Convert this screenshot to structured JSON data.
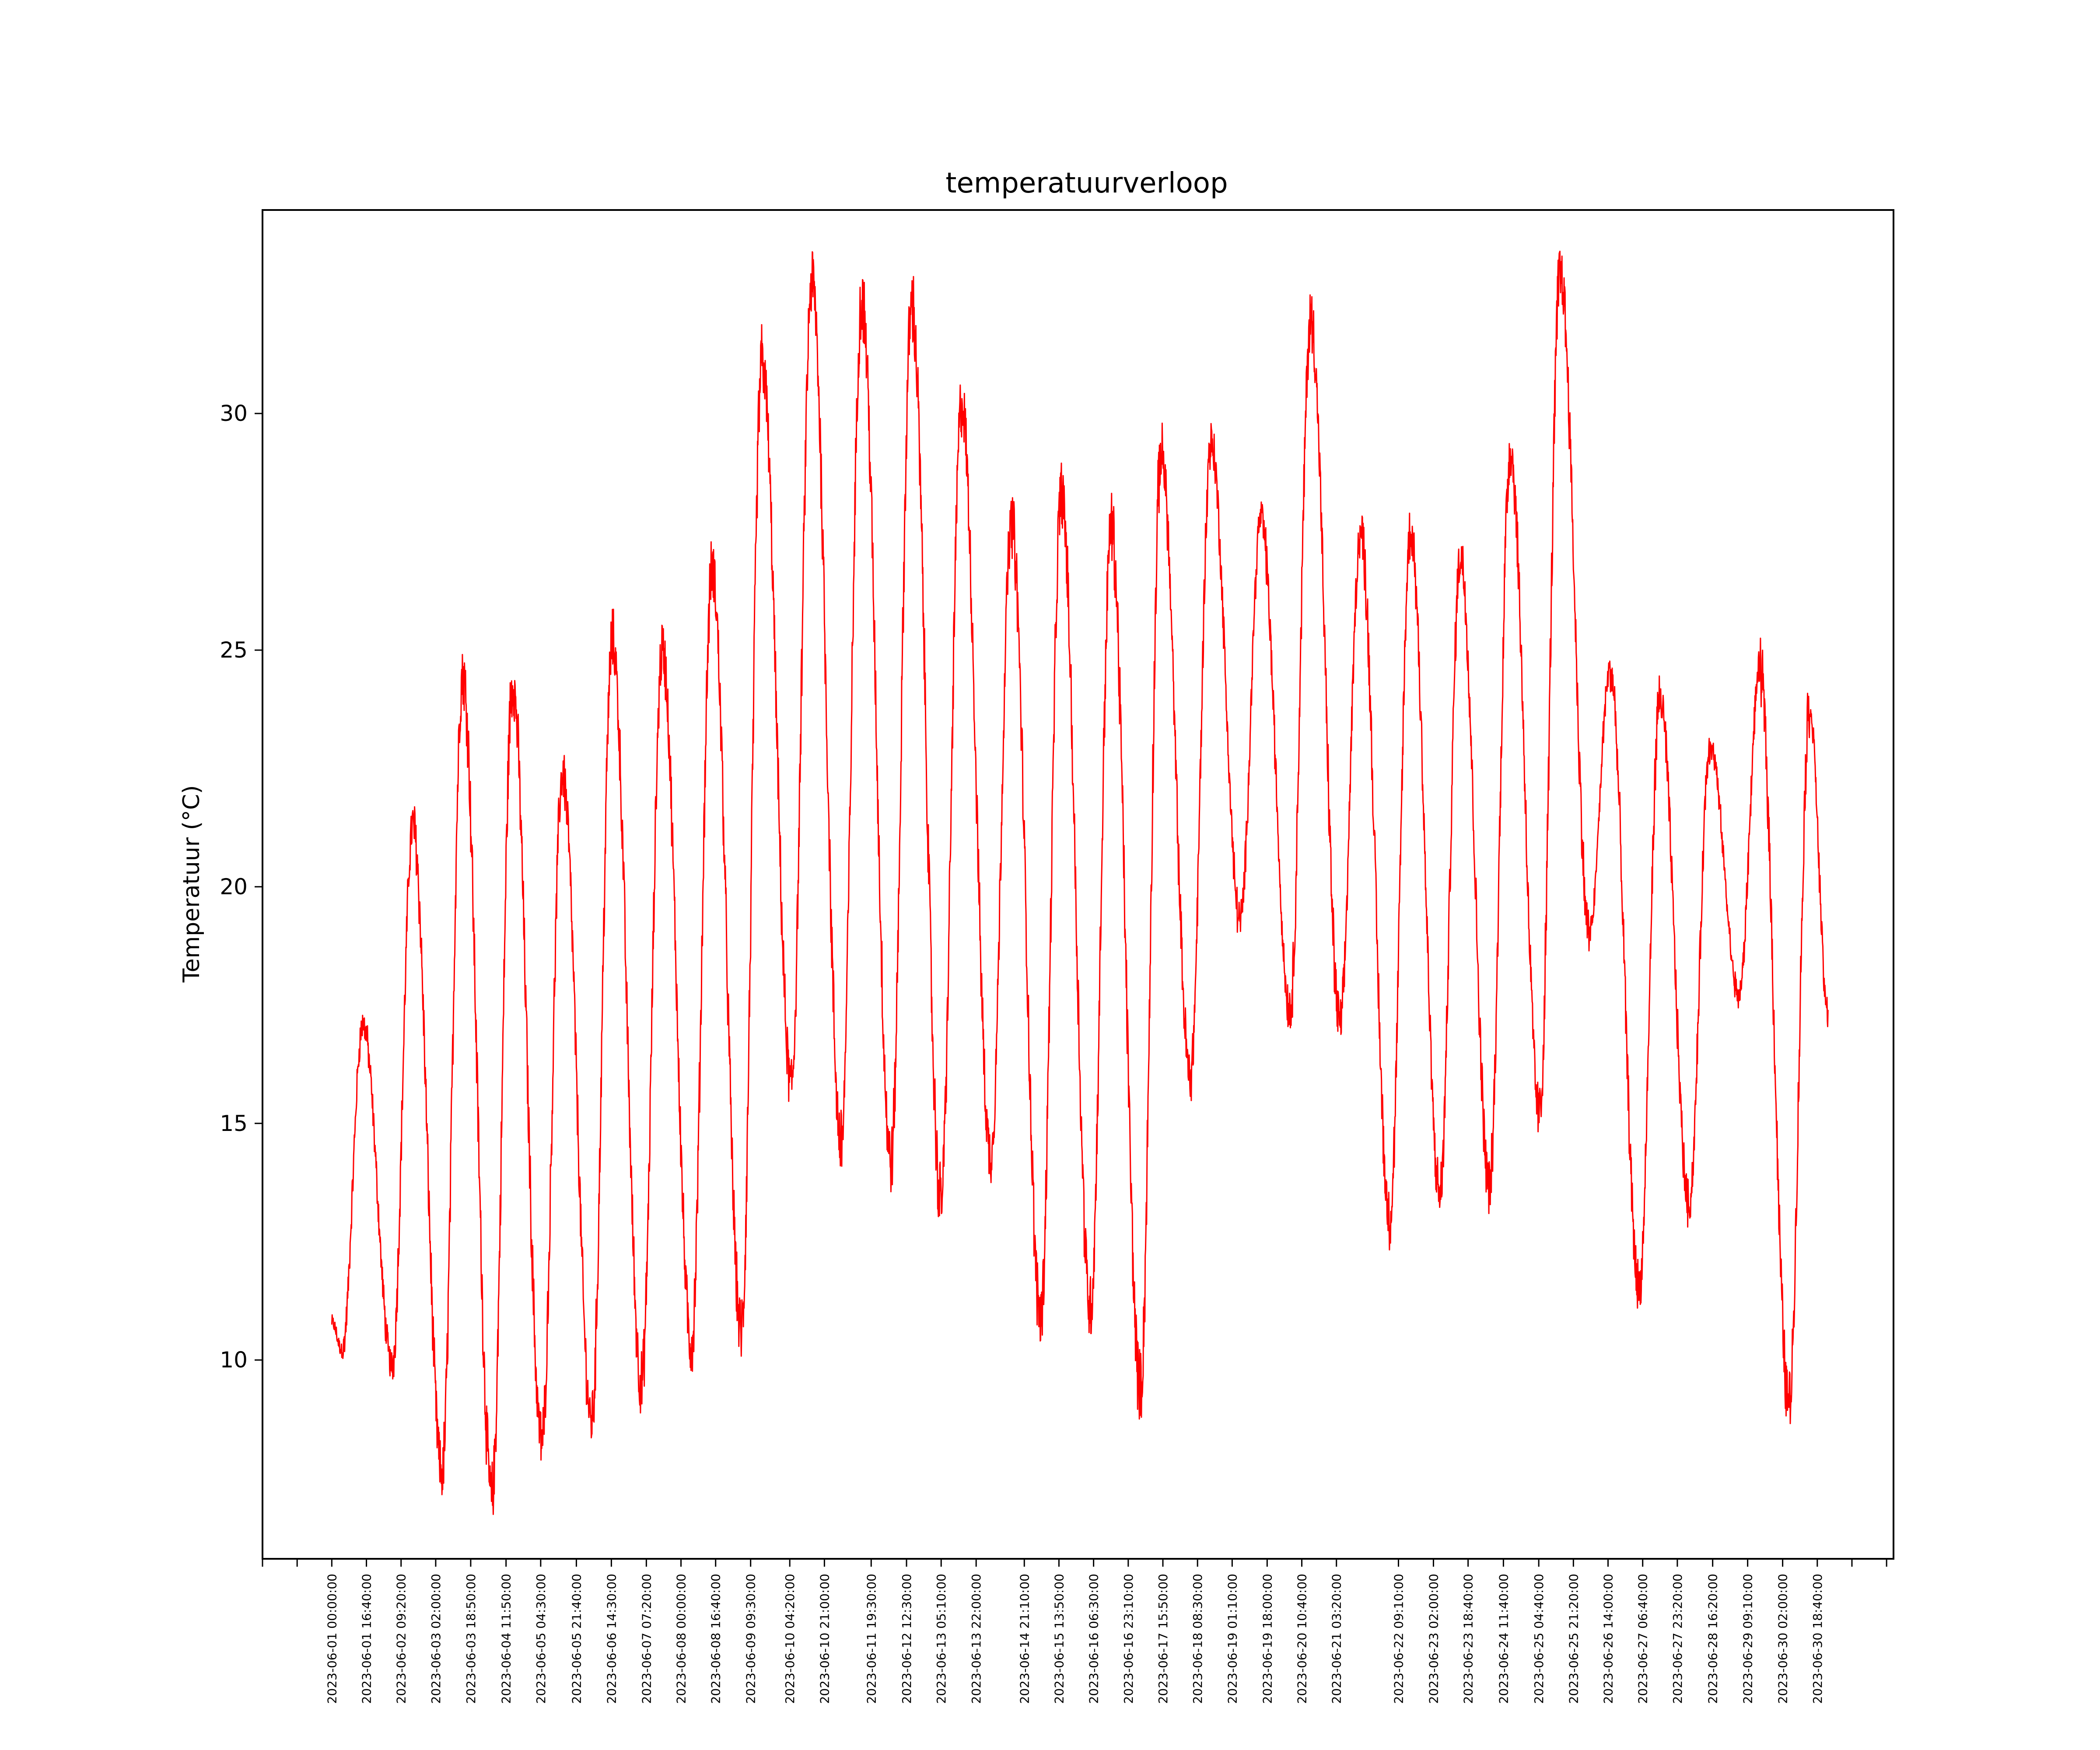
{
  "chart_data": {
    "type": "line",
    "title": "temperatuurverloop",
    "xlabel": "",
    "ylabel": "Temperatuur (°C)",
    "color": "#ff0000",
    "ylim": [
      5.8,
      34.3
    ],
    "yticks": [
      10,
      15,
      20,
      25,
      30
    ],
    "x_start": "2023-06-01 00:00:00",
    "x_end": "2023-06-30 23:50:00",
    "sample_interval_minutes": 10,
    "xticks": [
      "2023-06-01 00:00:00",
      "2023-06-01 16:40:00",
      "2023-06-02 09:20:00",
      "2023-06-03 02:00:00",
      "2023-06-03 18:50:00",
      "2023-06-04 11:50:00",
      "2023-06-05 04:30:00",
      "2023-06-05 21:40:00",
      "2023-06-06 14:30:00",
      "2023-06-07 07:20:00",
      "2023-06-08 00:00:00",
      "2023-06-08 16:40:00",
      "2023-06-09 09:30:00",
      "2023-06-10 04:20:00",
      "2023-06-10 21:00:00",
      "2023-06-11 19:30:00",
      "2023-06-12 12:30:00",
      "2023-06-13 05:10:00",
      "2023-06-13 22:00:00",
      "2023-06-14 21:10:00",
      "2023-06-15 13:50:00",
      "2023-06-16 06:30:00",
      "2023-06-16 23:10:00",
      "2023-06-17 15:50:00",
      "2023-06-18 08:30:00",
      "2023-06-19 01:10:00",
      "2023-06-19 18:00:00",
      "2023-06-20 10:40:00",
      "2023-06-21 03:20:00",
      "2023-06-22 09:10:00",
      "2023-06-23 02:00:00",
      "2023-06-23 18:40:00",
      "2023-06-24 11:40:00",
      "2023-06-25 04:40:00",
      "2023-06-25 21:20:00",
      "2023-06-26 14:00:00",
      "2023-06-27 06:40:00",
      "2023-06-27 23:20:00",
      "2023-06-28 16:20:00",
      "2023-06-29 09:10:00",
      "2023-06-30 02:00:00",
      "2023-06-30 18:40:00"
    ],
    "daily_cycle": [
      {
        "date": "2023-06-01",
        "min": 10.2,
        "max": 17.1
      },
      {
        "date": "2023-06-02",
        "min": 9.9,
        "max": 21.3
      },
      {
        "date": "2023-06-03",
        "min": 7.6,
        "max": 24.5
      },
      {
        "date": "2023-06-04",
        "min": 7.1,
        "max": 24.3
      },
      {
        "date": "2023-06-05",
        "min": 8.3,
        "max": 22.4
      },
      {
        "date": "2023-06-06",
        "min": 8.7,
        "max": 25.2
      },
      {
        "date": "2023-06-07",
        "min": 9.5,
        "max": 25.0
      },
      {
        "date": "2023-06-08",
        "min": 10.3,
        "max": 26.7
      },
      {
        "date": "2023-06-09",
        "min": 10.6,
        "max": 31.1
      },
      {
        "date": "2023-06-10",
        "min": 15.8,
        "max": 32.8
      },
      {
        "date": "2023-06-11",
        "min": 14.6,
        "max": 32.4
      },
      {
        "date": "2023-06-12",
        "min": 14.2,
        "max": 32.3
      },
      {
        "date": "2023-06-13",
        "min": 13.4,
        "max": 30.2
      },
      {
        "date": "2023-06-14",
        "min": 14.3,
        "max": 27.7
      },
      {
        "date": "2023-06-15",
        "min": 10.9,
        "max": 28.3
      },
      {
        "date": "2023-06-16",
        "min": 11.1,
        "max": 27.6
      },
      {
        "date": "2023-06-17",
        "min": 9.4,
        "max": 29.2
      },
      {
        "date": "2023-06-18",
        "min": 16.0,
        "max": 29.4
      },
      {
        "date": "2023-06-19",
        "min": 19.3,
        "max": 27.8
      },
      {
        "date": "2023-06-20",
        "min": 17.4,
        "max": 32.0
      },
      {
        "date": "2023-06-21",
        "min": 17.1,
        "max": 27.5
      },
      {
        "date": "2023-06-22",
        "min": 13.0,
        "max": 27.5
      },
      {
        "date": "2023-06-23",
        "min": 13.5,
        "max": 27.0
      },
      {
        "date": "2023-06-24",
        "min": 13.7,
        "max": 29.2
      },
      {
        "date": "2023-06-25",
        "min": 15.2,
        "max": 33.0
      },
      {
        "date": "2023-06-26",
        "min": 19.0,
        "max": 24.6
      },
      {
        "date": "2023-06-27",
        "min": 11.5,
        "max": 24.0
      },
      {
        "date": "2023-06-28",
        "min": 13.3,
        "max": 23.0
      },
      {
        "date": "2023-06-29",
        "min": 17.7,
        "max": 24.6
      },
      {
        "date": "2023-06-30",
        "min": 9.1,
        "max": 23.8
      }
    ],
    "start_value": 10.8,
    "end_value": 17.3
  }
}
